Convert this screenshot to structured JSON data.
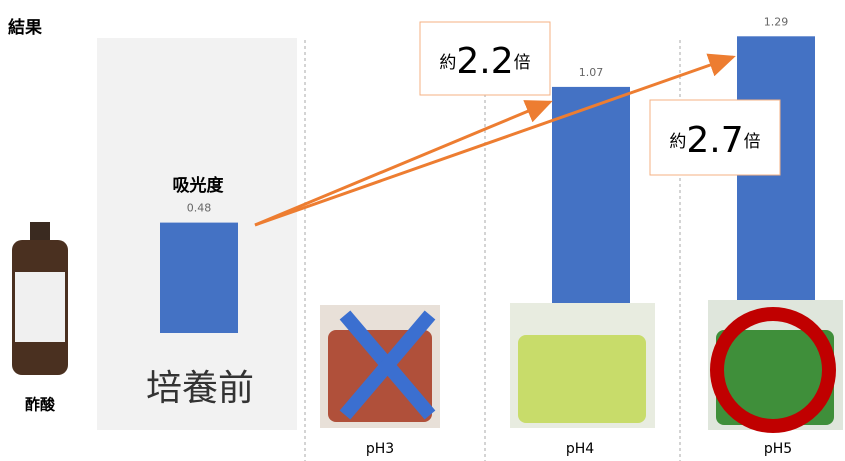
{
  "chart_data": {
    "type": "bar",
    "title": "結果",
    "y_label": "吸光度",
    "categories": [
      "培養前",
      "pH3",
      "pH4",
      "pH5"
    ],
    "values": [
      0.48,
      null,
      1.07,
      1.29
    ],
    "value_labels": [
      "0.48",
      null,
      "1.07",
      "1.29"
    ],
    "color": "#4472c4",
    "reagent_label": "酢酸",
    "annotations": [
      {
        "prefix": "約",
        "number": "2.2",
        "suffix": "倍"
      },
      {
        "prefix": "約",
        "number": "2.7",
        "suffix": "倍"
      }
    ]
  }
}
